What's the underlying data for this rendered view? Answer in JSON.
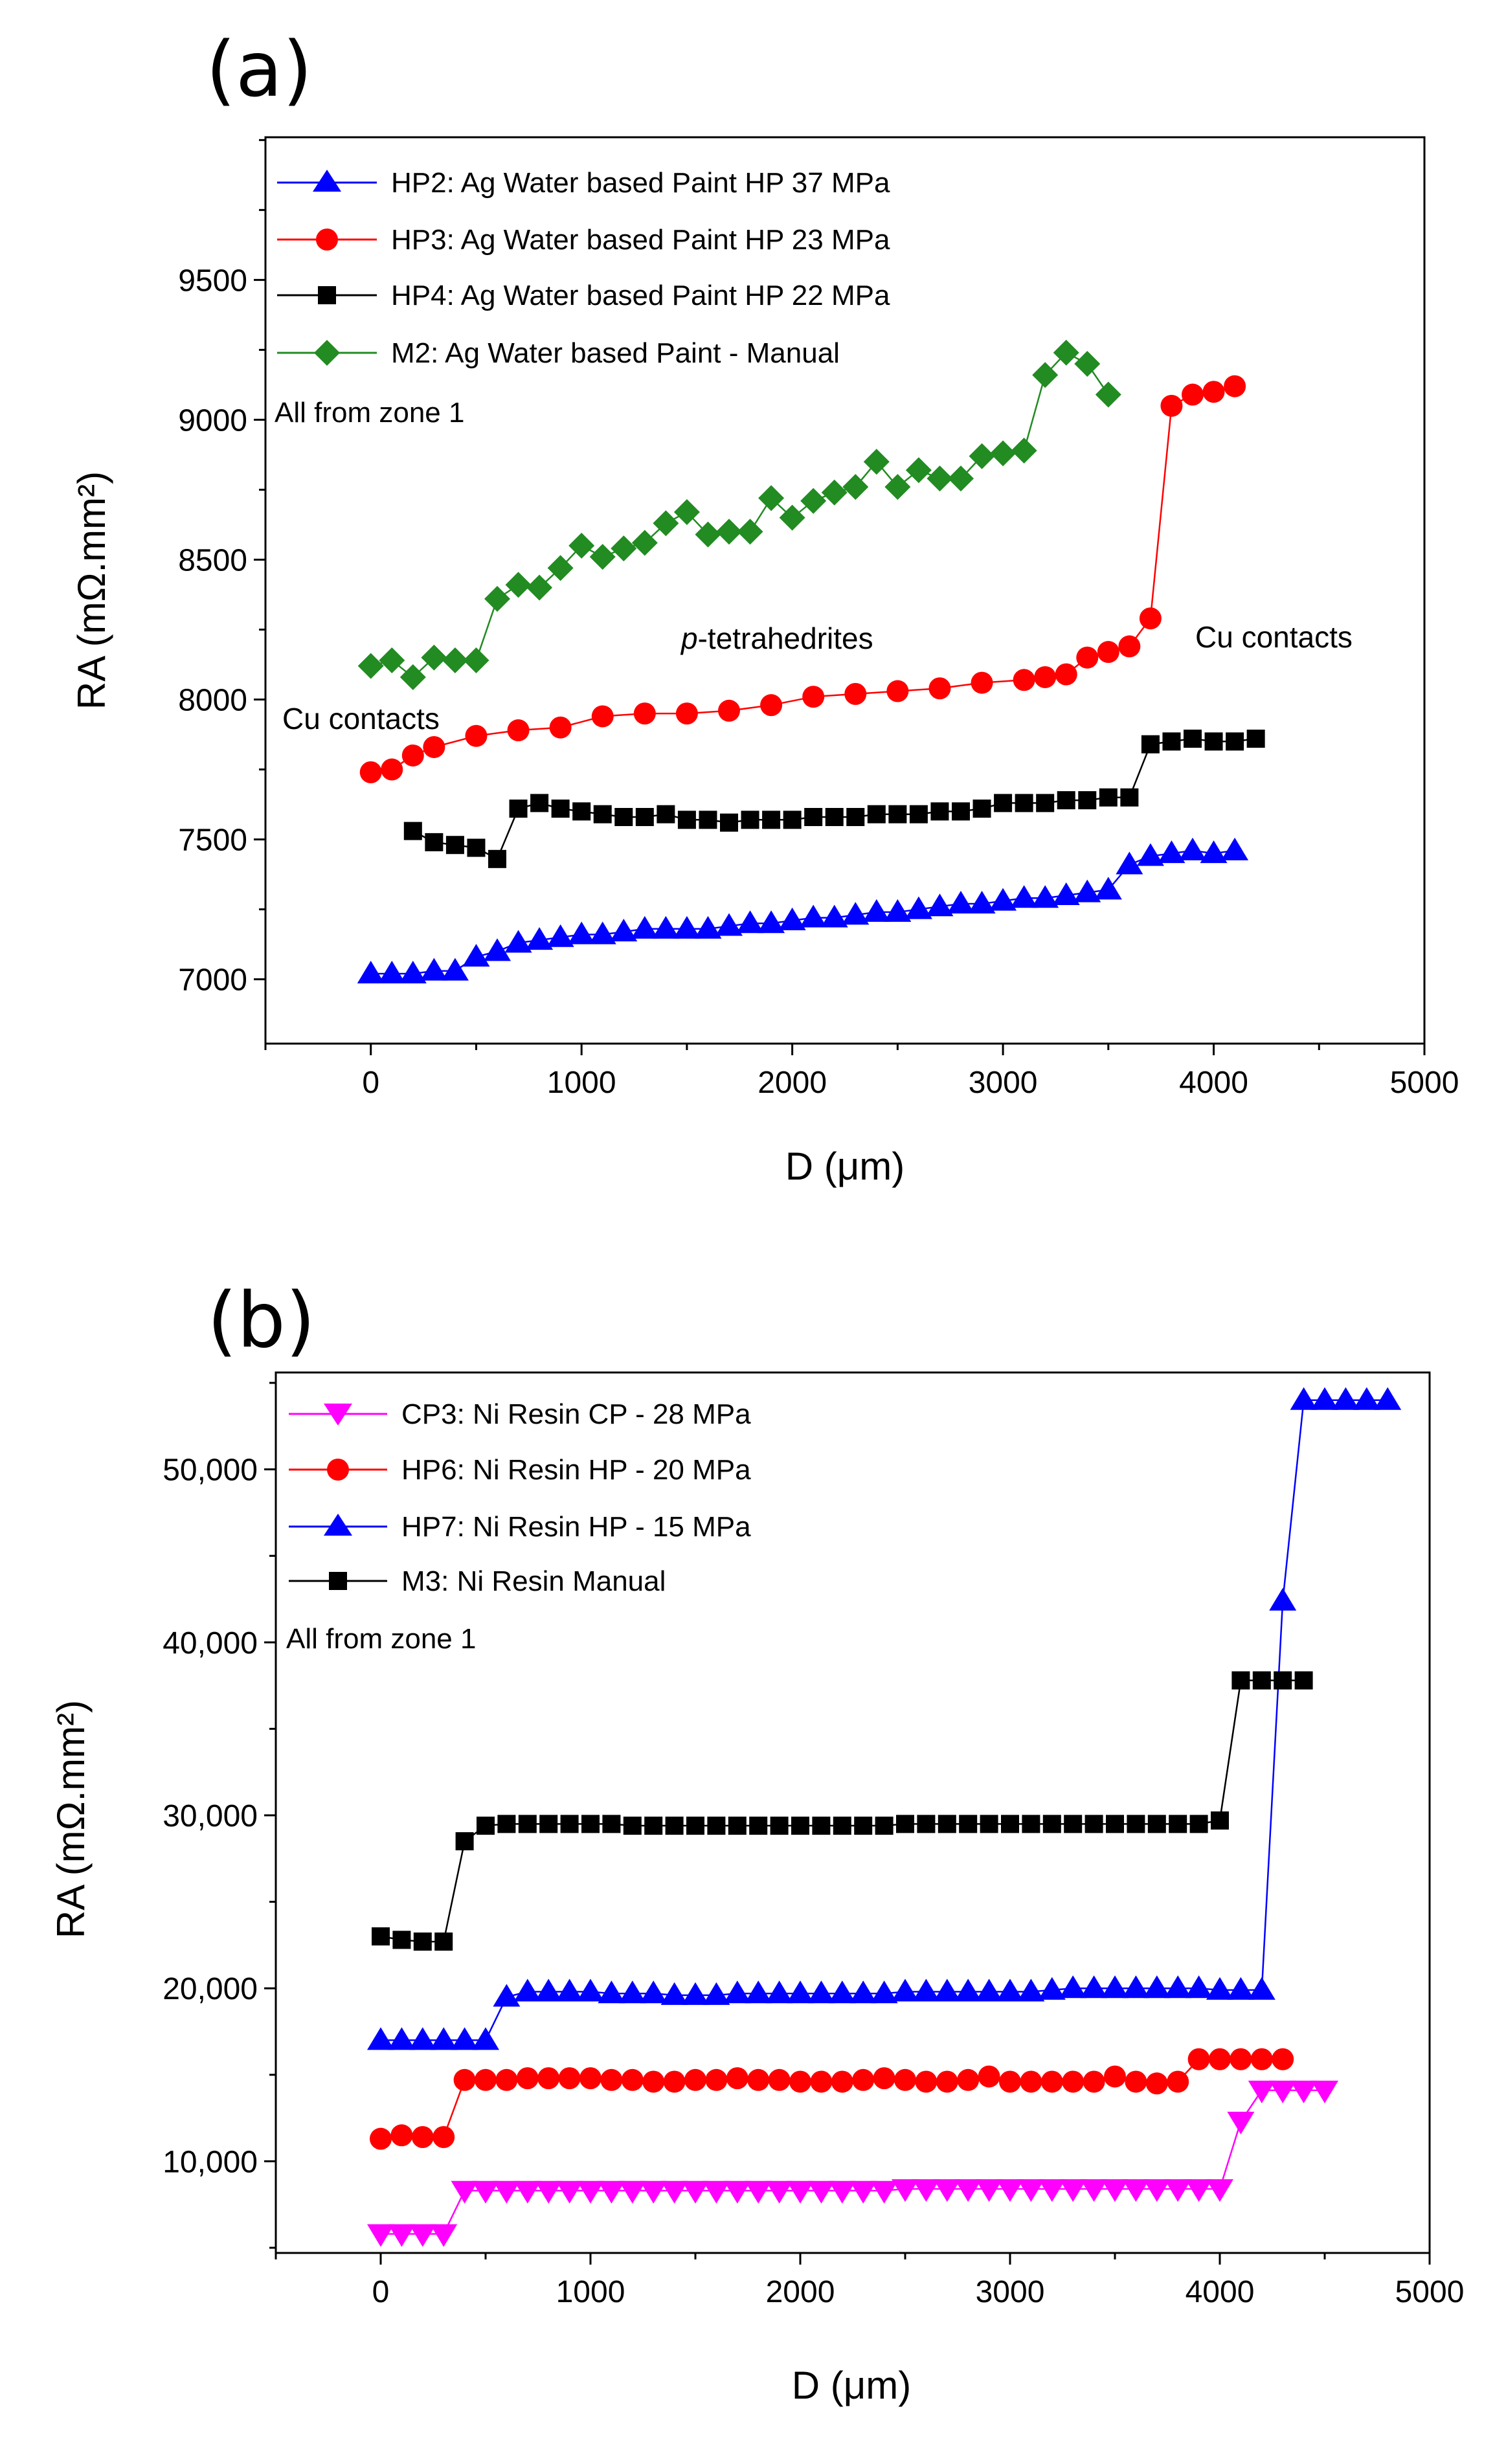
{
  "chart_data": [
    {
      "type": "line",
      "panel_label": "(a)",
      "xlabel": "D (μm)",
      "ylabel": "RA (mΩ.mm²)",
      "xlim": [
        -500,
        5000
      ],
      "ylim": [
        6770,
        10010
      ],
      "x_ticks": [
        0,
        1000,
        2000,
        3000,
        4000,
        5000
      ],
      "x_tick_labels": [
        "0",
        "1000",
        "2000",
        "3000",
        "4000",
        "5000"
      ],
      "y_ticks": [
        7000,
        7500,
        8000,
        8500,
        9000,
        9500
      ],
      "y_tick_labels": [
        "7000",
        "7500",
        "8000",
        "8500",
        "9000",
        "9500"
      ],
      "legend_note": "All from zone 1",
      "annotations": [
        {
          "text": "Cu contacts",
          "x": -400,
          "y": 7950,
          "italic_prefix": ""
        },
        {
          "text": "-tetrahedrites",
          "x": 1450,
          "y": 8110,
          "italic_prefix": "p"
        },
        {
          "text": "Cu contacts",
          "x": 3900,
          "y": 8130,
          "italic_prefix": ""
        }
      ],
      "series": [
        {
          "name": "HP2: Ag Water based Paint HP 37 MPa",
          "color": "#0000ff",
          "marker": "triangle-up",
          "x": [
            0,
            100,
            200,
            300,
            400,
            500,
            600,
            700,
            800,
            900,
            1000,
            1100,
            1200,
            1300,
            1400,
            1500,
            1600,
            1700,
            1800,
            1900,
            2000,
            2100,
            2200,
            2300,
            2400,
            2500,
            2600,
            2700,
            2800,
            2900,
            3000,
            3100,
            3200,
            3300,
            3400,
            3500,
            3600,
            3700,
            3800,
            3900,
            4000,
            4100
          ],
          "y": [
            7020,
            7020,
            7020,
            7030,
            7030,
            7080,
            7100,
            7130,
            7140,
            7150,
            7160,
            7160,
            7170,
            7180,
            7180,
            7180,
            7180,
            7190,
            7200,
            7200,
            7210,
            7220,
            7220,
            7230,
            7240,
            7240,
            7250,
            7260,
            7270,
            7270,
            7280,
            7290,
            7290,
            7300,
            7310,
            7320,
            7410,
            7440,
            7450,
            7460,
            7450,
            7460
          ]
        },
        {
          "name": "HP3: Ag Water based Paint HP 23 MPa",
          "color": "#ff0000",
          "marker": "circle",
          "x": [
            0,
            100,
            200,
            300,
            500,
            700,
            900,
            1100,
            1300,
            1500,
            1700,
            1900,
            2100,
            2300,
            2500,
            2700,
            2900,
            3100,
            3200,
            3300,
            3400,
            3500,
            3600,
            3700,
            3800,
            3900,
            4000,
            4100
          ],
          "y": [
            7740,
            7750,
            7800,
            7830,
            7870,
            7890,
            7900,
            7940,
            7950,
            7950,
            7960,
            7980,
            8010,
            8020,
            8030,
            8040,
            8060,
            8070,
            8080,
            8090,
            8150,
            8170,
            8190,
            8290,
            9050,
            9090,
            9100,
            9120
          ]
        },
        {
          "name": "HP4: Ag Water based Paint HP 22 MPa",
          "color": "#000000",
          "marker": "square",
          "x": [
            200,
            300,
            400,
            500,
            600,
            700,
            800,
            900,
            1000,
            1100,
            1200,
            1300,
            1400,
            1500,
            1600,
            1700,
            1800,
            1900,
            2000,
            2100,
            2200,
            2300,
            2400,
            2500,
            2600,
            2700,
            2800,
            2900,
            3000,
            3100,
            3200,
            3300,
            3400,
            3500,
            3600,
            3700,
            3800,
            3900,
            4000,
            4100,
            4200
          ],
          "y": [
            7530,
            7490,
            7480,
            7470,
            7430,
            7610,
            7630,
            7610,
            7600,
            7590,
            7580,
            7580,
            7590,
            7570,
            7570,
            7560,
            7570,
            7570,
            7570,
            7580,
            7580,
            7580,
            7590,
            7590,
            7590,
            7600,
            7600,
            7610,
            7630,
            7630,
            7630,
            7640,
            7640,
            7650,
            7650,
            7840,
            7850,
            7860,
            7850,
            7850,
            7860
          ]
        },
        {
          "name": "M2: Ag Water based Paint - Manual",
          "color": "#228b22",
          "marker": "diamond",
          "x": [
            0,
            100,
            200,
            300,
            400,
            500,
            600,
            700,
            800,
            900,
            1000,
            1100,
            1200,
            1300,
            1400,
            1500,
            1600,
            1700,
            1800,
            1900,
            2000,
            2100,
            2200,
            2300,
            2400,
            2500,
            2600,
            2700,
            2800,
            2900,
            3000,
            3100,
            3200,
            3300,
            3400,
            3500
          ],
          "y": [
            8120,
            8140,
            8080,
            8150,
            8140,
            8140,
            8360,
            8410,
            8400,
            8470,
            8550,
            8510,
            8540,
            8560,
            8630,
            8670,
            8590,
            8600,
            8600,
            8720,
            8650,
            8710,
            8740,
            8760,
            8850,
            8760,
            8820,
            8790,
            8790,
            8870,
            8880,
            8890,
            9160,
            9240,
            9200,
            9090
          ]
        }
      ]
    },
    {
      "type": "line",
      "panel_label": "(b)",
      "xlabel": "D (μm)",
      "ylabel": "RA (mΩ.mm²)",
      "xlim": [
        -500,
        5000
      ],
      "ylim": [
        4700,
        55600
      ],
      "x_ticks": [
        0,
        1000,
        2000,
        3000,
        4000,
        5000
      ],
      "x_tick_labels": [
        "0",
        "1000",
        "2000",
        "3000",
        "4000",
        "5000"
      ],
      "y_ticks": [
        10000,
        20000,
        30000,
        40000,
        50000
      ],
      "y_tick_labels": [
        "10,000",
        "20,000",
        "30,000",
        "40,000",
        "50,000"
      ],
      "legend_note": "All from zone 1",
      "annotations": [],
      "series": [
        {
          "name": "CP3: Ni Resin CP -  28 MPa",
          "color": "#ff00ff",
          "marker": "triangle-down",
          "x": [
            0,
            100,
            200,
            300,
            400,
            500,
            600,
            700,
            800,
            900,
            1000,
            1100,
            1200,
            1300,
            1400,
            1500,
            1600,
            1700,
            1800,
            1900,
            2000,
            2100,
            2200,
            2300,
            2400,
            2500,
            2600,
            2700,
            2800,
            2900,
            3000,
            3100,
            3200,
            3300,
            3400,
            3500,
            3600,
            3700,
            3800,
            3900,
            4000,
            4100,
            4200,
            4300,
            4400,
            4500
          ],
          "y": [
            5800,
            5800,
            5800,
            5800,
            8300,
            8300,
            8300,
            8300,
            8300,
            8300,
            8300,
            8300,
            8300,
            8300,
            8300,
            8300,
            8300,
            8300,
            8300,
            8300,
            8300,
            8300,
            8300,
            8300,
            8300,
            8400,
            8400,
            8400,
            8400,
            8400,
            8400,
            8400,
            8400,
            8400,
            8400,
            8400,
            8400,
            8400,
            8400,
            8400,
            8400,
            12300,
            14100,
            14100,
            14100,
            14100
          ]
        },
        {
          "name": "HP6: Ni Resin HP - 20 MPa",
          "color": "#ff0000",
          "marker": "circle",
          "x": [
            0,
            100,
            200,
            300,
            400,
            500,
            600,
            700,
            800,
            900,
            1000,
            1100,
            1200,
            1300,
            1400,
            1500,
            1600,
            1700,
            1800,
            1900,
            2000,
            2100,
            2200,
            2300,
            2400,
            2500,
            2600,
            2700,
            2800,
            2900,
            3000,
            3100,
            3200,
            3300,
            3400,
            3500,
            3600,
            3700,
            3800,
            3900,
            4000,
            4100,
            4200,
            4300
          ],
          "y": [
            11300,
            11500,
            11400,
            11400,
            14700,
            14700,
            14700,
            14800,
            14800,
            14800,
            14800,
            14700,
            14700,
            14600,
            14600,
            14700,
            14700,
            14800,
            14700,
            14700,
            14600,
            14600,
            14600,
            14700,
            14800,
            14700,
            14600,
            14600,
            14700,
            14900,
            14600,
            14600,
            14600,
            14600,
            14600,
            14900,
            14600,
            14500,
            14600,
            15900,
            15900,
            15900,
            15900,
            15900
          ]
        },
        {
          "name": "HP7: Ni Resin HP - 15 MPa",
          "color": "#0000ff",
          "marker": "triangle-up",
          "x": [
            0,
            100,
            200,
            300,
            400,
            500,
            600,
            700,
            800,
            900,
            1000,
            1100,
            1200,
            1300,
            1400,
            1500,
            1600,
            1700,
            1800,
            1900,
            2000,
            2100,
            2200,
            2300,
            2400,
            2500,
            2600,
            2700,
            2800,
            2900,
            3000,
            3100,
            3200,
            3300,
            3400,
            3500,
            3600,
            3700,
            3800,
            3900,
            4000,
            4100,
            4200,
            4300,
            4400,
            4500,
            4600,
            4700,
            4800
          ],
          "y": [
            17000,
            17000,
            17000,
            17000,
            17000,
            17000,
            19500,
            19800,
            19800,
            19800,
            19800,
            19700,
            19700,
            19700,
            19600,
            19600,
            19600,
            19700,
            19700,
            19700,
            19700,
            19700,
            19700,
            19700,
            19700,
            19800,
            19800,
            19800,
            19800,
            19800,
            19800,
            19800,
            19900,
            20000,
            20000,
            20000,
            20000,
            20000,
            20000,
            20000,
            19900,
            19900,
            19900,
            42400,
            54000,
            54000,
            54000,
            54000,
            54000
          ]
        },
        {
          "name": "M3: Ni Resin Manual",
          "color": "#000000",
          "marker": "square",
          "x": [
            0,
            100,
            200,
            300,
            400,
            500,
            600,
            700,
            800,
            900,
            1000,
            1100,
            1200,
            1300,
            1400,
            1500,
            1600,
            1700,
            1800,
            1900,
            2000,
            2100,
            2200,
            2300,
            2400,
            2500,
            2600,
            2700,
            2800,
            2900,
            3000,
            3100,
            3200,
            3300,
            3400,
            3500,
            3600,
            3700,
            3800,
            3900,
            4000,
            4100,
            4200,
            4300,
            4400
          ],
          "y": [
            23000,
            22800,
            22700,
            22700,
            28500,
            29400,
            29500,
            29500,
            29500,
            29500,
            29500,
            29500,
            29400,
            29400,
            29400,
            29400,
            29400,
            29400,
            29400,
            29400,
            29400,
            29400,
            29400,
            29400,
            29400,
            29500,
            29500,
            29500,
            29500,
            29500,
            29500,
            29500,
            29500,
            29500,
            29500,
            29500,
            29500,
            29500,
            29500,
            29500,
            29700,
            37800,
            37800,
            37800,
            37800
          ]
        }
      ]
    }
  ]
}
